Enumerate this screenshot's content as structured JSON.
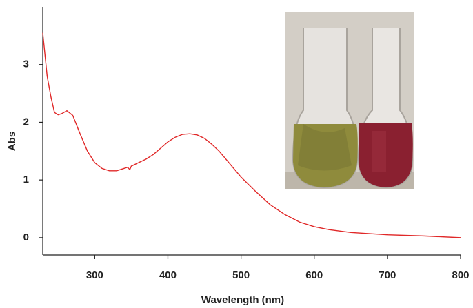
{
  "chart_data": {
    "type": "line",
    "xlabel": "Wavelength (nm)",
    "ylabel": "Abs",
    "x": [
      229,
      235,
      240,
      245,
      250,
      255,
      262,
      270,
      280,
      290,
      300,
      310,
      320,
      330,
      340,
      345,
      348,
      350,
      360,
      370,
      380,
      390,
      400,
      410,
      420,
      430,
      440,
      450,
      460,
      470,
      480,
      490,
      500,
      520,
      540,
      560,
      580,
      600,
      620,
      650,
      700,
      750,
      800
    ],
    "values": [
      3.55,
      2.8,
      2.45,
      2.17,
      2.13,
      2.15,
      2.2,
      2.12,
      1.8,
      1.5,
      1.3,
      1.2,
      1.16,
      1.16,
      1.2,
      1.22,
      1.18,
      1.24,
      1.3,
      1.36,
      1.44,
      1.55,
      1.66,
      1.74,
      1.79,
      1.8,
      1.78,
      1.72,
      1.62,
      1.5,
      1.35,
      1.2,
      1.05,
      0.8,
      0.57,
      0.4,
      0.27,
      0.19,
      0.14,
      0.09,
      0.05,
      0.03,
      0.0
    ],
    "color": "#e02828",
    "xlim": [
      229,
      800
    ],
    "xticks": [
      300,
      400,
      500,
      600,
      700,
      800
    ],
    "ylim": [
      -0.3,
      4
    ],
    "yticks": [
      0,
      1,
      2,
      3
    ]
  }
}
